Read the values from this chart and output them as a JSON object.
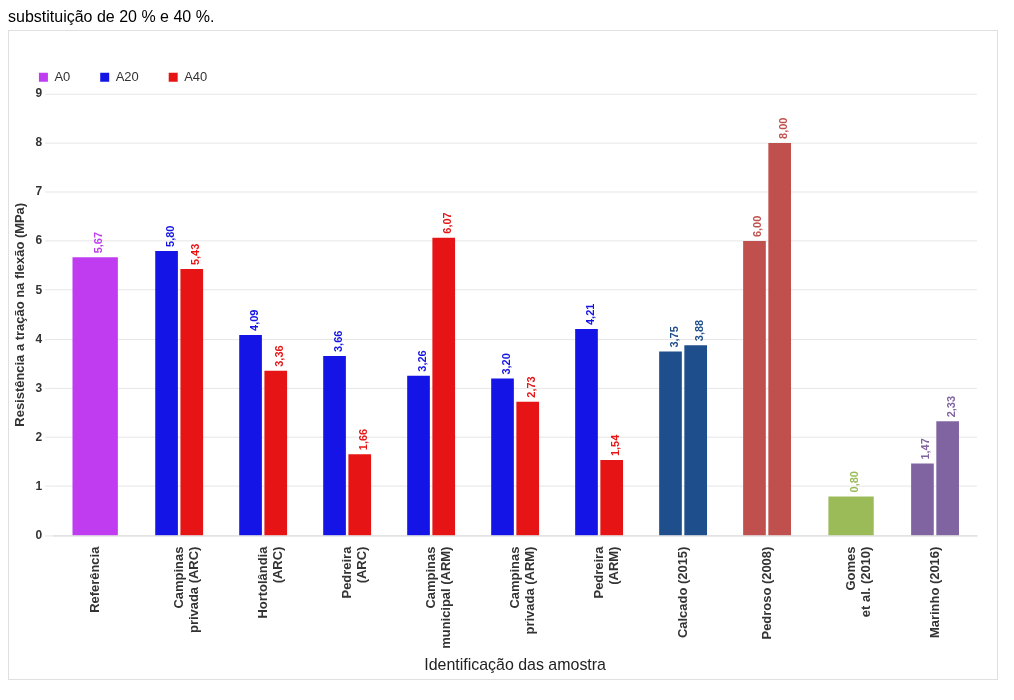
{
  "chart_data": {
    "type": "bar",
    "title": "substituição de 20 % e 40 %.",
    "xlabel": "Identificação das amostra",
    "ylabel": "Resistência a tração na flexão (MPa)",
    "categories": [
      "Referência",
      "Campinas\nprivada (ARC)",
      "Hortolândia\n(ARC)",
      "Pedreira\n(ARC)",
      "Campinas\nmunicipal (ARM)",
      "Campinas\nprivada (ARM)",
      "Pedreira\n(ARM)",
      "Calcado (2015)",
      "Pedroso (2008)",
      "Gomes\net al. (2010)",
      "Marinho (2016)"
    ],
    "series": [
      {
        "name": "A0",
        "color": "#c03cf0",
        "colors": [
          "#c03cf0",
          null,
          null,
          null,
          null,
          null,
          null,
          null,
          null,
          null,
          null
        ],
        "values": [
          5.67,
          null,
          null,
          null,
          null,
          null,
          null,
          null,
          null,
          null,
          null
        ],
        "value_labels": [
          "5,67",
          null,
          null,
          null,
          null,
          null,
          null,
          null,
          null,
          null,
          null
        ]
      },
      {
        "name": "A20",
        "color": "#1414e6",
        "colors": [
          null,
          "#1414e6",
          "#1414e6",
          "#1414e6",
          "#1414e6",
          "#1414e6",
          "#1414e6",
          "#1f4e8c",
          "#c0504d",
          "#9bbb59",
          "#8064a2"
        ],
        "values": [
          null,
          5.8,
          4.09,
          3.66,
          3.26,
          3.2,
          4.21,
          3.75,
          6.0,
          0.8,
          1.47
        ],
        "value_labels": [
          null,
          "5,80",
          "4,09",
          "3,66",
          "3,26",
          "3,20",
          "4,21",
          "3,75",
          "6,00",
          "0,80",
          "1,47"
        ]
      },
      {
        "name": "A40",
        "color": "#e61414",
        "colors": [
          null,
          "#e61414",
          "#e61414",
          "#e61414",
          "#e61414",
          "#e61414",
          "#e61414",
          "#1f4e8c",
          "#c0504d",
          null,
          "#8064a2"
        ],
        "values": [
          null,
          5.43,
          3.36,
          1.66,
          6.07,
          2.73,
          1.54,
          3.88,
          8.0,
          null,
          2.33
        ],
        "value_labels": [
          null,
          "5,43",
          "3,36",
          "1,66",
          "6,07",
          "2,73",
          "1,54",
          "3,88",
          "8,00",
          null,
          "2,33"
        ]
      }
    ],
    "ylim": [
      0,
      9
    ],
    "yticks": [
      0,
      1,
      2,
      3,
      4,
      5,
      6,
      7,
      8,
      9
    ],
    "grid": "y",
    "legend": "top left"
  }
}
